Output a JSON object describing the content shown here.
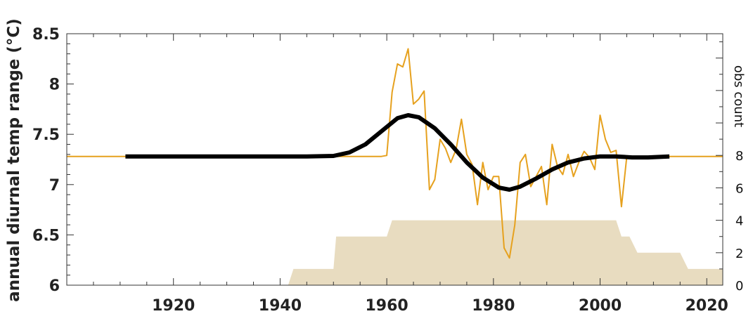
{
  "chart_data": {
    "type": "line",
    "title": "",
    "xlabel": "",
    "ylabel": "annual diurnal temp range (°C)",
    "y2label": "obs count",
    "xlim": [
      1900,
      2023
    ],
    "ylim": [
      6,
      8.5
    ],
    "y2lim": [
      0,
      15.5
    ],
    "grid": false,
    "x_ticks": [
      1920,
      1940,
      1960,
      1980,
      2000,
      2020
    ],
    "y_ticks": [
      6,
      6.5,
      7,
      7.5,
      8,
      8.5
    ],
    "y_tick_labels": [
      "6",
      "6.5",
      "7",
      "7.5",
      "8",
      "8.5"
    ],
    "y2_ticks": [
      0,
      2,
      4,
      6,
      8
    ],
    "colors": {
      "annual": "#e6a11e",
      "smooth": "#000000",
      "count": "#e8dcc0",
      "axis": "#333333"
    },
    "series": [
      {
        "kind": "annual",
        "x": [
          1900,
          1950,
          1955,
          1956,
          1957,
          1958,
          1959,
          1960,
          1961,
          1962,
          1963,
          1964,
          1965,
          1966,
          1967,
          1968,
          1969,
          1970,
          1971,
          1972,
          1973,
          1974,
          1975,
          1976,
          1977,
          1978,
          1979,
          1980,
          1981,
          1982,
          1983,
          1984,
          1985,
          1986,
          1987,
          1988,
          1989,
          1990,
          1991,
          1992,
          1993,
          1994,
          1995,
          1996,
          1997,
          1998,
          1999,
          2000,
          2001,
          2002,
          2003,
          2004,
          2005,
          2006,
          2023
        ],
        "y": [
          7.28,
          7.28,
          7.28,
          7.28,
          7.28,
          7.28,
          7.28,
          7.29,
          7.92,
          8.2,
          8.17,
          8.35,
          7.8,
          7.85,
          7.93,
          6.95,
          7.05,
          7.45,
          7.36,
          7.22,
          7.35,
          7.65,
          7.3,
          7.2,
          6.8,
          7.22,
          6.95,
          7.08,
          7.08,
          6.37,
          6.27,
          6.6,
          7.22,
          7.3,
          6.98,
          7.08,
          7.18,
          6.8,
          7.4,
          7.18,
          7.1,
          7.3,
          7.08,
          7.22,
          7.33,
          7.27,
          7.15,
          7.69,
          7.45,
          7.32,
          7.34,
          6.78,
          7.28,
          7.28,
          7.28
        ]
      },
      {
        "kind": "smooth",
        "x": [
          1911,
          1930,
          1945,
          1950,
          1953,
          1956,
          1959,
          1962,
          1964,
          1966,
          1969,
          1972,
          1975,
          1978,
          1981,
          1983,
          1985,
          1988,
          1991,
          1994,
          1997,
          2000,
          2003,
          2006,
          2009,
          2013
        ],
        "y": [
          7.28,
          7.28,
          7.28,
          7.285,
          7.32,
          7.4,
          7.53,
          7.66,
          7.69,
          7.67,
          7.56,
          7.4,
          7.22,
          7.07,
          6.97,
          6.95,
          6.98,
          7.06,
          7.15,
          7.22,
          7.26,
          7.28,
          7.28,
          7.27,
          7.27,
          7.28
        ]
      }
    ],
    "obs_count": {
      "x": [
        1900,
        1941.5,
        1942.5,
        1950,
        1950.5,
        1960,
        1961,
        2003,
        2004,
        2005.5,
        2007,
        2007.5,
        2015,
        2016.5,
        2023
      ],
      "y": [
        0,
        0,
        1,
        1,
        3,
        3,
        4,
        4,
        3,
        3,
        2,
        2,
        2,
        1,
        1
      ]
    }
  }
}
